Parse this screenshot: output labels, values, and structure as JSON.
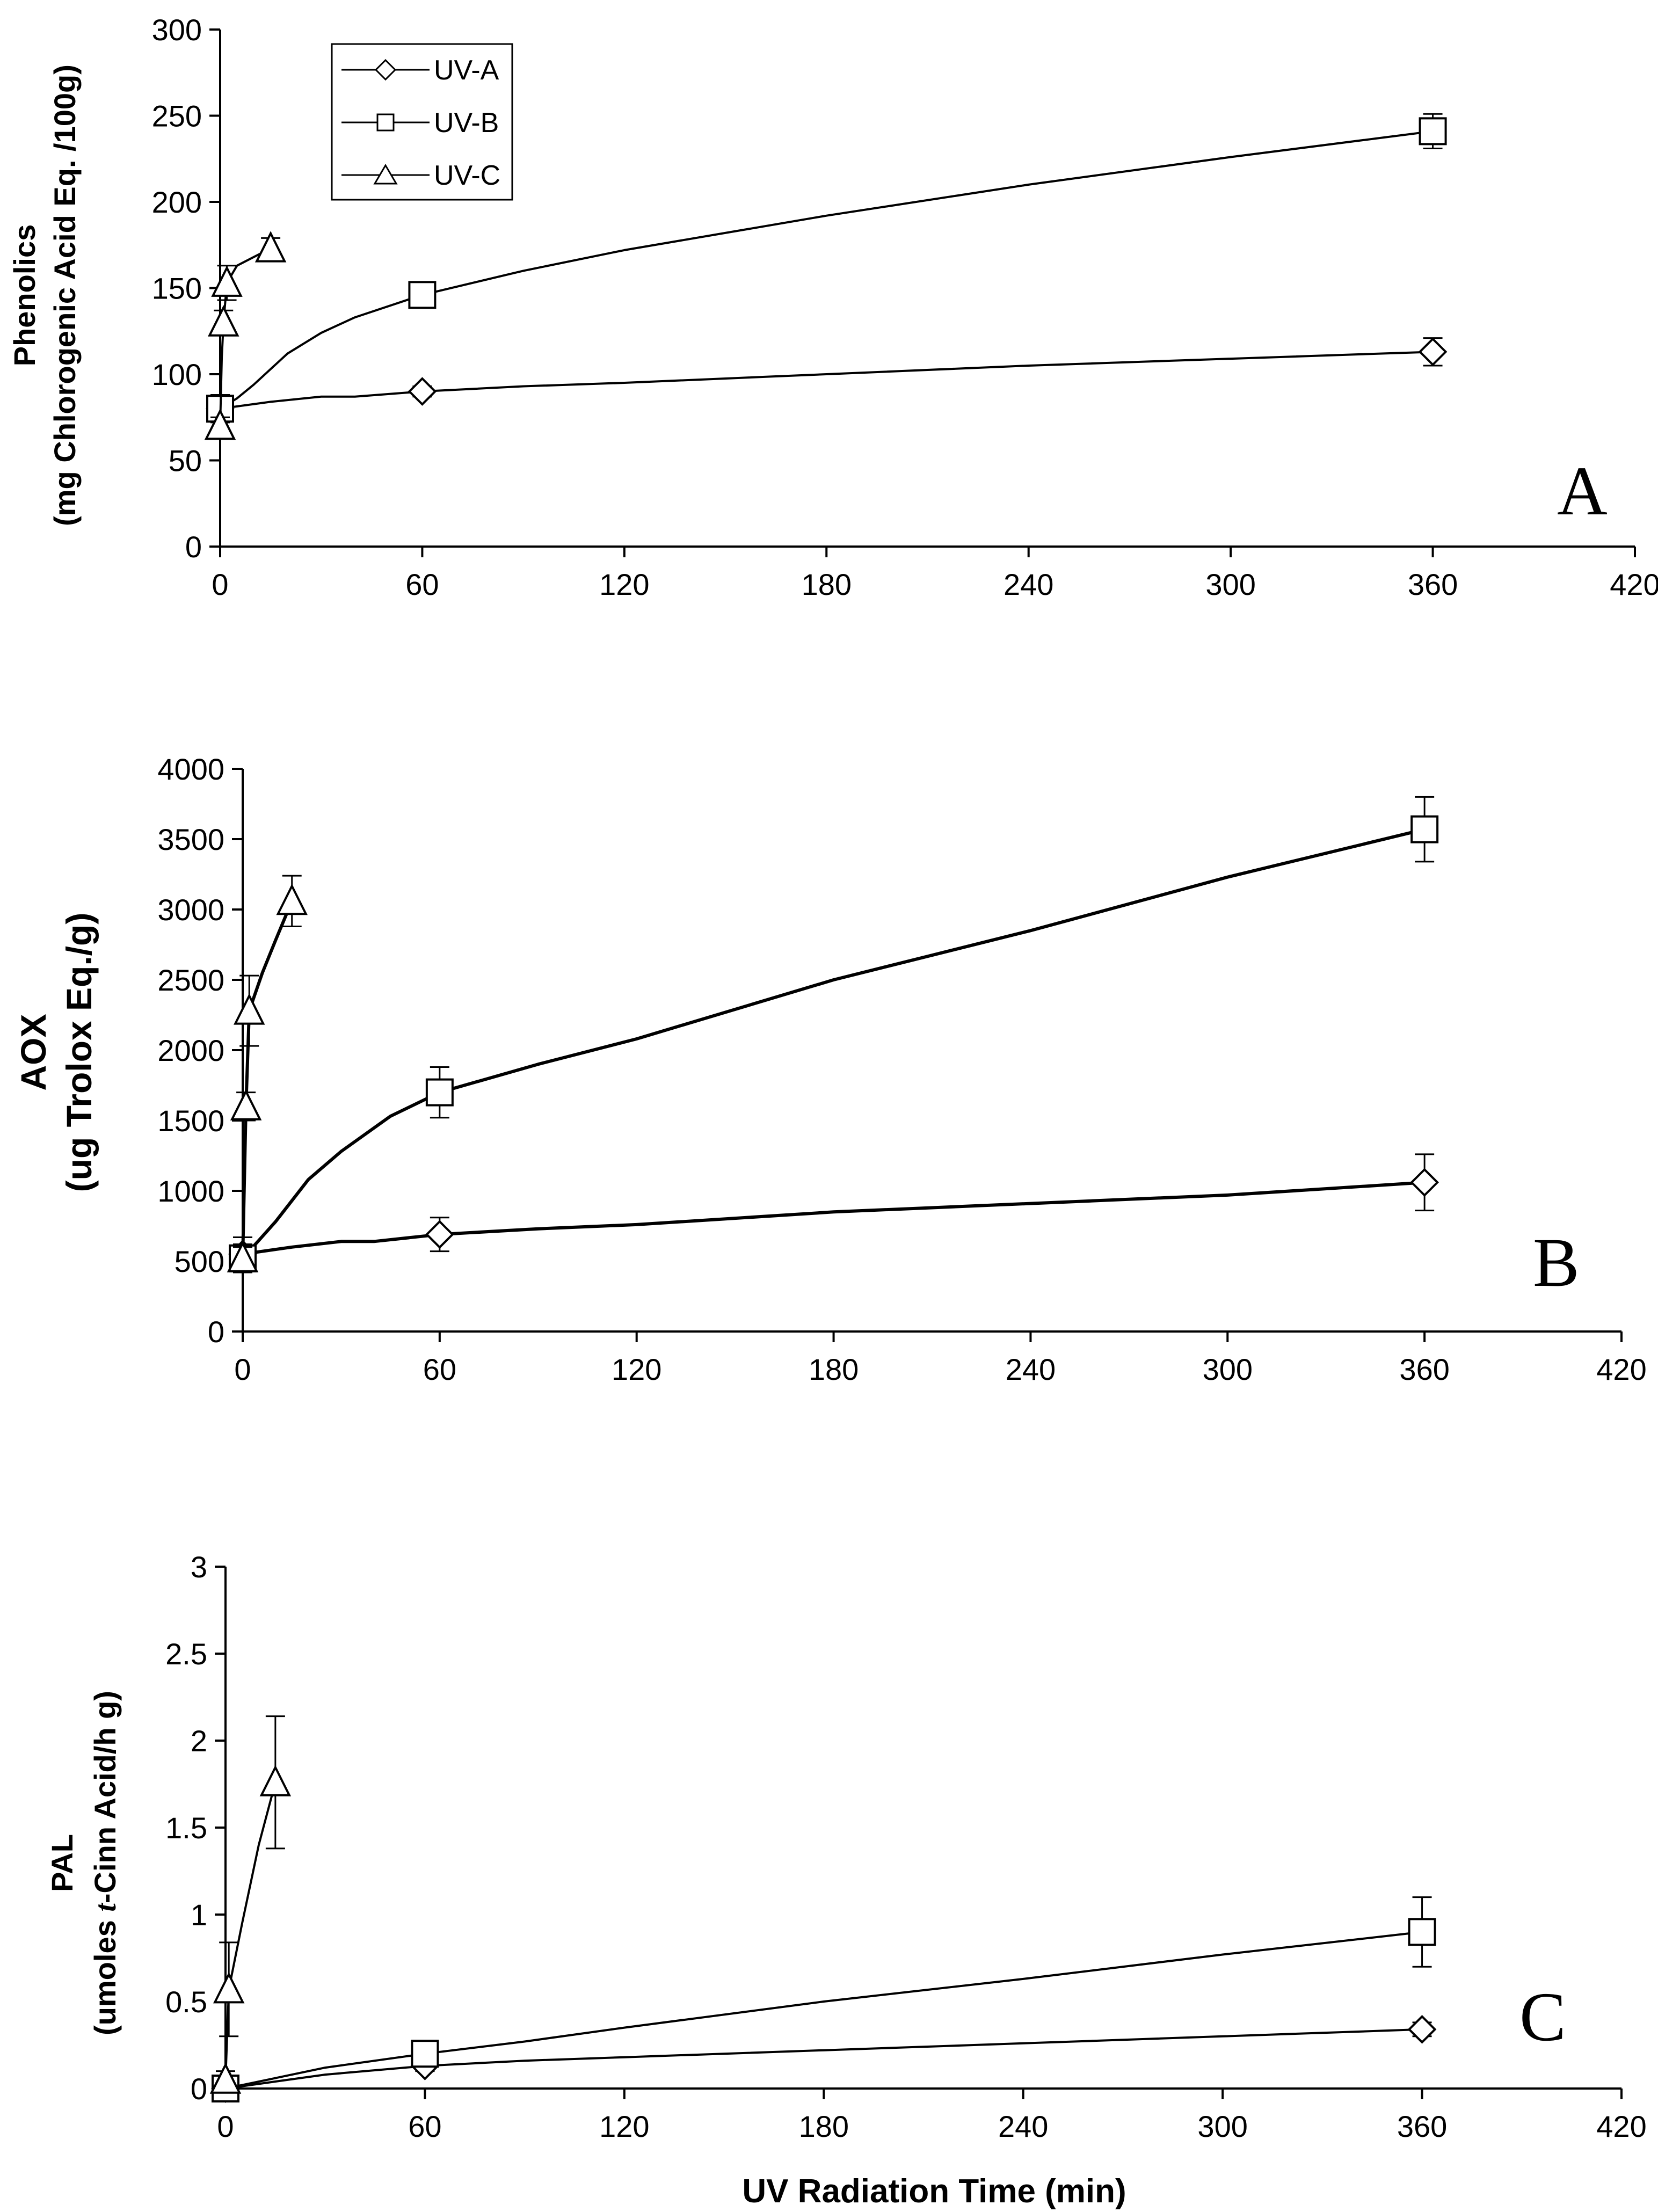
{
  "chart_data": [
    {
      "type": "line",
      "panel": "A",
      "ylabel_line1": "Phenolics",
      "ylabel_line2": "(mg Chlorogenic Acid Eq. /100g)",
      "xlabel": "",
      "xlim": [
        0,
        420
      ],
      "ylim": [
        0,
        300
      ],
      "x_ticks": [
        0,
        60,
        120,
        180,
        240,
        300,
        360,
        420
      ],
      "y_ticks": [
        0,
        50,
        100,
        150,
        200,
        250,
        300
      ],
      "legend": [
        "UV-A",
        "UV-B",
        "UV-C"
      ],
      "legend_position": "top-left",
      "series": [
        {
          "name": "UV-A",
          "marker": "diamond",
          "x": [
            0,
            60,
            360
          ],
          "y": [
            80,
            90,
            113
          ],
          "err": [
            3,
            3,
            8
          ],
          "curve": [
            [
              0,
              80
            ],
            [
              15,
              84
            ],
            [
              30,
              87
            ],
            [
              40,
              87
            ],
            [
              60,
              90
            ],
            [
              90,
              93
            ],
            [
              120,
              95
            ],
            [
              180,
              100
            ],
            [
              240,
              105
            ],
            [
              300,
              109
            ],
            [
              360,
              113
            ]
          ]
        },
        {
          "name": "UV-B",
          "marker": "square",
          "x": [
            0,
            60,
            360
          ],
          "y": [
            80,
            146,
            241
          ],
          "err": [
            8,
            5,
            10
          ],
          "curve": [
            [
              0,
              80
            ],
            [
              5,
              86
            ],
            [
              10,
              94
            ],
            [
              20,
              112
            ],
            [
              30,
              124
            ],
            [
              40,
              133
            ],
            [
              60,
              146
            ],
            [
              90,
              160
            ],
            [
              120,
              172
            ],
            [
              180,
              192
            ],
            [
              240,
              210
            ],
            [
              300,
              226
            ],
            [
              360,
              241
            ]
          ]
        },
        {
          "name": "UV-C",
          "marker": "triangle",
          "x": [
            0,
            1,
            2,
            15
          ],
          "y": [
            70,
            130,
            153,
            173
          ],
          "err": [
            5,
            7,
            10,
            6
          ],
          "curve": [
            [
              0,
              70
            ],
            [
              0.5,
              110
            ],
            [
              1,
              130
            ],
            [
              2,
              153
            ],
            [
              5,
              163
            ],
            [
              10,
              168
            ],
            [
              15,
              173
            ]
          ]
        }
      ]
    },
    {
      "type": "line",
      "panel": "B",
      "ylabel_line1": "AOX",
      "ylabel_line2": "(ug Trolox Eq./g)",
      "xlabel": "",
      "xlim": [
        0,
        420
      ],
      "ylim": [
        0,
        4000
      ],
      "x_ticks": [
        0,
        60,
        120,
        180,
        240,
        300,
        360,
        420
      ],
      "y_ticks": [
        0,
        500,
        1000,
        1500,
        2000,
        2500,
        3000,
        3500,
        4000
      ],
      "series": [
        {
          "name": "UV-A",
          "marker": "diamond",
          "x": [
            0,
            60,
            360
          ],
          "y": [
            550,
            690,
            1060
          ],
          "err": [
            120,
            120,
            200
          ],
          "curve": [
            [
              0,
              550
            ],
            [
              15,
              600
            ],
            [
              30,
              640
            ],
            [
              40,
              640
            ],
            [
              60,
              690
            ],
            [
              90,
              730
            ],
            [
              120,
              760
            ],
            [
              180,
              850
            ],
            [
              240,
              910
            ],
            [
              300,
              970
            ],
            [
              360,
              1060
            ]
          ]
        },
        {
          "name": "UV-B",
          "marker": "square",
          "x": [
            0,
            60,
            360
          ],
          "y": [
            520,
            1700,
            3570
          ],
          "err": [
            100,
            180,
            230
          ],
          "curve": [
            [
              0,
              520
            ],
            [
              5,
              650
            ],
            [
              10,
              780
            ],
            [
              20,
              1080
            ],
            [
              30,
              1280
            ],
            [
              45,
              1530
            ],
            [
              60,
              1700
            ],
            [
              90,
              1900
            ],
            [
              120,
              2080
            ],
            [
              180,
              2500
            ],
            [
              240,
              2850
            ],
            [
              300,
              3230
            ],
            [
              360,
              3570
            ]
          ]
        },
        {
          "name": "UV-C",
          "marker": "triangle",
          "x": [
            0,
            1,
            2,
            15
          ],
          "y": [
            520,
            1600,
            2280,
            3060
          ],
          "err": [
            80,
            100,
            250,
            180
          ],
          "curve": [
            [
              0,
              520
            ],
            [
              1,
              1600
            ],
            [
              2,
              2280
            ],
            [
              6,
              2550
            ],
            [
              10,
              2780
            ],
            [
              15,
              3060
            ]
          ]
        }
      ]
    },
    {
      "type": "line",
      "panel": "C",
      "ylabel_line1": "PAL",
      "ylabel_line2_prefix": "(umoles ",
      "ylabel_line2_italic": "t",
      "ylabel_line2_suffix": "-Cinn Acid/h g)",
      "xlabel": "UV Radiation Time (min)",
      "xlim": [
        0,
        420
      ],
      "ylim": [
        0,
        3
      ],
      "x_ticks": [
        0,
        60,
        120,
        180,
        240,
        300,
        360,
        420
      ],
      "y_ticks": [
        0,
        0.5,
        1,
        1.5,
        2,
        2.5,
        3
      ],
      "series": [
        {
          "name": "UV-A",
          "marker": "diamond",
          "x": [
            0,
            60,
            360
          ],
          "y": [
            0.0,
            0.13,
            0.34
          ],
          "err": [
            0.02,
            0.03,
            0.04
          ],
          "curve": [
            [
              0,
              0.0
            ],
            [
              15,
              0.04
            ],
            [
              30,
              0.08
            ],
            [
              60,
              0.13
            ],
            [
              90,
              0.16
            ],
            [
              120,
              0.18
            ],
            [
              180,
              0.22
            ],
            [
              240,
              0.26
            ],
            [
              300,
              0.3
            ],
            [
              360,
              0.34
            ]
          ]
        },
        {
          "name": "UV-B",
          "marker": "square",
          "x": [
            0,
            60,
            360
          ],
          "y": [
            0.0,
            0.2,
            0.9
          ],
          "err": [
            0.02,
            0.04,
            0.2
          ],
          "curve": [
            [
              0,
              0.0
            ],
            [
              15,
              0.06
            ],
            [
              30,
              0.12
            ],
            [
              60,
              0.2
            ],
            [
              90,
              0.27
            ],
            [
              120,
              0.35
            ],
            [
              180,
              0.5
            ],
            [
              240,
              0.63
            ],
            [
              300,
              0.77
            ],
            [
              360,
              0.9
            ]
          ]
        },
        {
          "name": "UV-C",
          "marker": "triangle",
          "x": [
            0,
            1,
            15
          ],
          "y": [
            0.05,
            0.57,
            1.76
          ],
          "err": [
            0.05,
            0.27,
            0.38
          ],
          "curve": [
            [
              0,
              0.05
            ],
            [
              1,
              0.57
            ],
            [
              5,
              0.95
            ],
            [
              10,
              1.4
            ],
            [
              15,
              1.76
            ]
          ]
        }
      ]
    }
  ]
}
